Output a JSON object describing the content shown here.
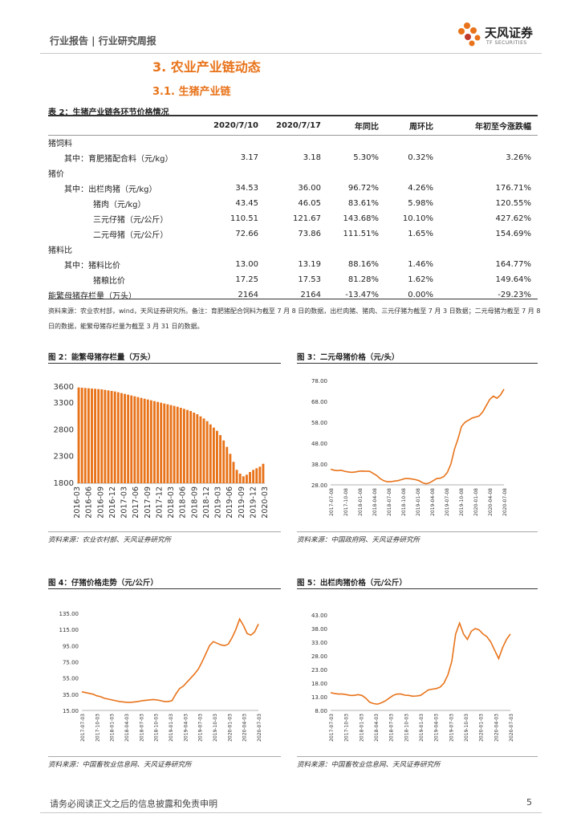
{
  "header": {
    "left": "行业报告 | 行业研究周报",
    "brand": "天风证券",
    "brand_sub": "TF SECURITIES"
  },
  "section_title": "3. 农业产业链动态",
  "subsection_title": "3.1. 生猪产业链",
  "table": {
    "title": "表 2：生猪产业链各环节价格情况",
    "headers": [
      "",
      "2020/7/10",
      "2020/7/17",
      "年同比",
      "周环比",
      "年初至今涨跌幅"
    ],
    "rows": [
      {
        "label": "猪饲料",
        "indent": 0,
        "values": [
          "",
          "",
          "",
          "",
          ""
        ]
      },
      {
        "label": "其中：育肥猪配合料（元/kg）",
        "indent": 1,
        "values": [
          "3.17",
          "3.18",
          "5.30%",
          "0.32%",
          "3.26%"
        ]
      },
      {
        "label": "猪价",
        "indent": 0,
        "values": [
          "",
          "",
          "",
          "",
          ""
        ]
      },
      {
        "label": "其中：出栏肉猪（元/kg）",
        "indent": 1,
        "values": [
          "34.53",
          "36.00",
          "96.72%",
          "4.26%",
          "176.71%"
        ]
      },
      {
        "label": "猪肉（元/kg）",
        "indent": 2,
        "values": [
          "43.45",
          "46.05",
          "83.61%",
          "5.98%",
          "120.55%"
        ]
      },
      {
        "label": "三元仔猪（元/公斤）",
        "indent": 2,
        "values": [
          "110.51",
          "121.67",
          "143.68%",
          "10.10%",
          "427.62%"
        ]
      },
      {
        "label": "二元母猪（元/公斤）",
        "indent": 2,
        "values": [
          "72.66",
          "73.86",
          "111.51%",
          "1.65%",
          "154.69%"
        ]
      },
      {
        "label": "猪料比",
        "indent": 0,
        "values": [
          "",
          "",
          "",
          "",
          ""
        ]
      },
      {
        "label": "其中：猪料比价",
        "indent": 1,
        "values": [
          "13.00",
          "13.19",
          "88.16%",
          "1.46%",
          "164.77%"
        ]
      },
      {
        "label": "猪粮比价",
        "indent": 2,
        "values": [
          "17.25",
          "17.53",
          "81.28%",
          "1.62%",
          "149.64%"
        ]
      },
      {
        "label": "能繁母猪存栏量（万头）",
        "indent": 0,
        "values": [
          "2164",
          "2164",
          "-13.47%",
          "0.00%",
          "-29.23%"
        ]
      }
    ],
    "note": "资料来源：农业农村部，wind，天风证券研究所。备注：育肥猪配合饲料为截至 7 月 8 日的数据，出栏肉猪、猪肉、三元仔猪为截至 7 月 3 日数据；二元母猪为截至 7 月 8 日的数据，能繁母猪存栏量为截至 3 月 31 日的数据。"
  },
  "figures": [
    {
      "title": "图 2：能繁母猪存栏量（万头）",
      "source": "资料来源：农业农村部、天风证券研究所"
    },
    {
      "title": "图 3：二元母猪价格（元/头）",
      "source": "资料来源：中国政府网、天风证券研究所"
    },
    {
      "title": "图 4：仔猪价格走势（元/公斤）",
      "source": "资料来源：中国畜牧业信息网、天风证券研究所"
    },
    {
      "title": "图 5：出栏肉猪价格（元/公斤）",
      "source": "资料来源：中国畜牧业信息网、天风证券研究所"
    }
  ],
  "chart_data": [
    {
      "type": "bar",
      "color": "#e8731a",
      "ylim": [
        1800,
        3600
      ],
      "yticks": [
        1800,
        2300,
        2800,
        3300,
        3600
      ],
      "tick_labels": [
        "2016-03",
        "2016-06",
        "2016-09",
        "2016-12",
        "2017-03",
        "2017-06",
        "2017-09",
        "2017-12",
        "2018-03",
        "2018-06",
        "2018-09",
        "2018-12",
        "2019-03",
        "2019-06",
        "2019-09",
        "2019-12",
        "2020-03"
      ],
      "values": [
        3590,
        3585,
        3580,
        3575,
        3570,
        3565,
        3560,
        3555,
        3545,
        3535,
        3525,
        3515,
        3500,
        3485,
        3470,
        3455,
        3440,
        3425,
        3410,
        3395,
        3380,
        3365,
        3350,
        3335,
        3320,
        3305,
        3290,
        3275,
        3260,
        3245,
        3230,
        3210,
        3190,
        3170,
        3150,
        3120,
        3090,
        3050,
        3010,
        2960,
        2900,
        2840,
        2780,
        2700,
        2600,
        2480,
        2350,
        2200,
        2050,
        1980,
        1930,
        1960,
        2010,
        2050,
        2080,
        2110,
        2164
      ]
    },
    {
      "type": "line",
      "color": "#e8731a",
      "ylim": [
        28,
        78
      ],
      "yticks": [
        "28.00",
        "38.00",
        "48.00",
        "58.00",
        "68.00",
        "78.00"
      ],
      "tick_labels": [
        "2017-07-08",
        "2017-10-08",
        "2018-01-08",
        "2018-04-08",
        "2018-07-08",
        "2018-10-08",
        "2019-01-08",
        "2019-04-08",
        "2019-07-08",
        "2019-10-08",
        "2020-01-08",
        "2020-04-08",
        "2020-07-08"
      ],
      "values": [
        35.5,
        35,
        34.8,
        35,
        34.5,
        34.2,
        34,
        34.2,
        34.5,
        34.6,
        34.5,
        34.5,
        33.5,
        32.5,
        31,
        30,
        29.5,
        29.5,
        29.8,
        30,
        30.5,
        31,
        31,
        30.8,
        30.5,
        30,
        29,
        28.5,
        29,
        30,
        31,
        31.2,
        32,
        34,
        38,
        45,
        50,
        56,
        58,
        59,
        60,
        60.5,
        61,
        63,
        66,
        69,
        70.5,
        69.5,
        71,
        73.86
      ]
    },
    {
      "type": "line",
      "color": "#e8731a",
      "ylim": [
        15,
        135
      ],
      "yticks": [
        "15.00",
        "35.00",
        "55.00",
        "75.00",
        "95.00",
        "115.00",
        "135.00"
      ],
      "tick_labels": [
        "2017-07-03",
        "2017-10-03",
        "2018-01-03",
        "2018-04-03",
        "2018-07-03",
        "2018-10-03",
        "2019-01-03",
        "2019-04-03",
        "2019-07-03",
        "2019-10-03",
        "2020-01-03",
        "2020-04-03",
        "2020-07-03"
      ],
      "values": [
        38,
        37,
        36,
        35,
        33,
        32,
        30,
        29,
        28,
        27,
        26,
        25.5,
        25,
        25,
        25.5,
        26,
        27,
        27.5,
        28,
        28.5,
        28,
        27,
        26,
        26,
        27,
        35,
        42,
        45,
        50,
        55,
        60,
        66,
        75,
        85,
        95,
        100,
        98,
        96,
        95,
        97,
        105,
        115,
        128,
        120,
        110,
        108,
        112,
        121.67
      ]
    },
    {
      "type": "line",
      "color": "#e8731a",
      "ylim": [
        8,
        43
      ],
      "yticks": [
        "8.00",
        "13.00",
        "18.00",
        "23.00",
        "28.00",
        "33.00",
        "38.00",
        "43.00"
      ],
      "tick_labels": [
        "2017-07-03",
        "2017-10-03",
        "2018-01-03",
        "2018-04-03",
        "2018-07-03",
        "2018-10-03",
        "2019-01-03",
        "2019-04-03",
        "2019-07-03",
        "2019-10-03",
        "2020-01-03",
        "2020-04-03",
        "2020-07-03"
      ],
      "values": [
        14.5,
        14.2,
        14,
        14,
        13.8,
        13.5,
        13.5,
        13.8,
        13.5,
        12.5,
        11,
        10.5,
        10.3,
        10.8,
        11.5,
        12.5,
        13.5,
        14,
        14,
        13.6,
        13.5,
        13.2,
        13.3,
        13.5,
        14.5,
        15.5,
        15.8,
        16,
        16.5,
        18,
        21,
        26,
        36,
        40,
        36,
        34,
        37,
        38,
        37.5,
        36,
        35,
        33,
        30,
        27,
        31,
        34,
        36
      ]
    }
  ],
  "footer": {
    "disclaimer": "请务必阅读正文之后的信息披露和免责申明",
    "page": "5"
  }
}
